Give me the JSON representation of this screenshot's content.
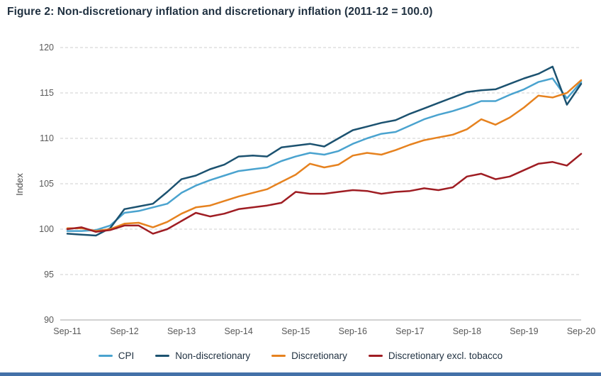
{
  "figure": {
    "title": "Figure 2: Non-discretionary inflation and discretionary inflation (2011-12 = 100.0)"
  },
  "chart_data": {
    "type": "line",
    "title": "Figure 2: Non-discretionary inflation and discretionary inflation (2011-12 = 100.0)",
    "xlabel": "",
    "ylabel": "Index",
    "ylim": [
      90,
      120
    ],
    "yticks": [
      90,
      95,
      100,
      105,
      110,
      115,
      120
    ],
    "grid": "horizontal-dashed",
    "legend_position": "bottom",
    "x_tick_labels": [
      "Sep-11",
      "Sep-12",
      "Sep-13",
      "Sep-14",
      "Sep-15",
      "Sep-16",
      "Sep-17",
      "Sep-18",
      "Sep-19",
      "Sep-20"
    ],
    "categories": [
      "Sep-11",
      "Dec-11",
      "Mar-12",
      "Jun-12",
      "Sep-12",
      "Dec-12",
      "Mar-13",
      "Jun-13",
      "Sep-13",
      "Dec-13",
      "Mar-14",
      "Jun-14",
      "Sep-14",
      "Dec-14",
      "Mar-15",
      "Jun-15",
      "Sep-15",
      "Dec-15",
      "Mar-16",
      "Jun-16",
      "Sep-16",
      "Dec-16",
      "Mar-17",
      "Jun-17",
      "Sep-17",
      "Dec-17",
      "Mar-18",
      "Jun-18",
      "Sep-18",
      "Dec-18",
      "Mar-19",
      "Jun-19",
      "Sep-19",
      "Dec-19",
      "Mar-20",
      "Jun-20",
      "Sep-20"
    ],
    "series": [
      {
        "name": "CPI",
        "color": "#4aa3cf",
        "values": [
          99.8,
          99.8,
          99.9,
          100.4,
          101.8,
          102.0,
          102.4,
          102.8,
          104.0,
          104.8,
          105.4,
          105.9,
          106.4,
          106.6,
          106.8,
          107.5,
          108.0,
          108.4,
          108.2,
          108.6,
          109.4,
          110.0,
          110.5,
          110.7,
          111.4,
          112.1,
          112.6,
          113.0,
          113.5,
          114.1,
          114.1,
          114.8,
          115.4,
          116.2,
          116.6,
          114.4,
          116.2
        ]
      },
      {
        "name": "Non-discretionary",
        "color": "#1c5270",
        "values": [
          99.5,
          99.4,
          99.3,
          100.1,
          102.2,
          102.5,
          102.8,
          104.1,
          105.5,
          105.9,
          106.6,
          107.1,
          108.0,
          108.1,
          108.0,
          109.0,
          109.2,
          109.4,
          109.1,
          110.0,
          110.9,
          111.3,
          111.7,
          112.0,
          112.7,
          113.3,
          113.9,
          114.5,
          115.1,
          115.3,
          115.4,
          116.0,
          116.6,
          117.1,
          117.9,
          113.7,
          116.0
        ]
      },
      {
        "name": "Discretionary",
        "color": "#e6821f",
        "values": [
          100.1,
          100.1,
          99.8,
          100.0,
          100.6,
          100.7,
          100.2,
          100.8,
          101.7,
          102.4,
          102.6,
          103.1,
          103.6,
          104.0,
          104.4,
          105.2,
          106.0,
          107.2,
          106.8,
          107.1,
          108.1,
          108.4,
          108.2,
          108.7,
          109.3,
          109.8,
          110.1,
          110.4,
          111.0,
          112.1,
          111.5,
          112.3,
          113.4,
          114.7,
          114.5,
          115.0,
          116.4
        ]
      },
      {
        "name": "Discretionary excl. tobacco",
        "color": "#9f1d23",
        "values": [
          100.0,
          100.2,
          99.7,
          99.9,
          100.4,
          100.4,
          99.5,
          100.0,
          100.9,
          101.8,
          101.4,
          101.7,
          102.2,
          102.4,
          102.6,
          102.9,
          104.1,
          103.9,
          103.9,
          104.1,
          104.3,
          104.2,
          103.9,
          104.1,
          104.2,
          104.5,
          104.3,
          104.6,
          105.8,
          106.1,
          105.5,
          105.8,
          106.5,
          107.2,
          107.4,
          107.0,
          108.3
        ]
      }
    ]
  },
  "style": {
    "grid_color": "#cfcfcf",
    "axis_color": "#a6a6a6",
    "tick_text_color": "#595959",
    "title_color": "#1f3040",
    "accent_strip_color": "#4471a8"
  }
}
